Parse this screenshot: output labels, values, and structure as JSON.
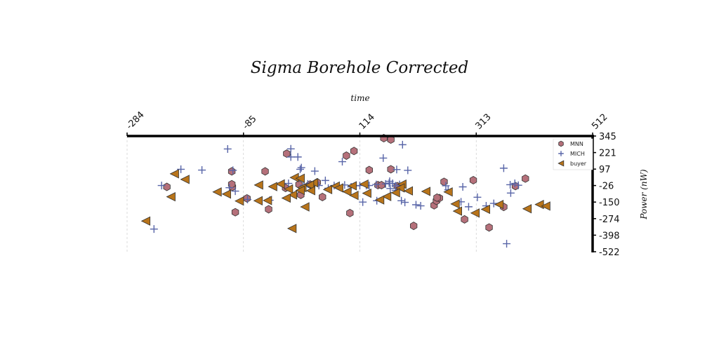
{
  "chart_data": {
    "type": "scatter",
    "title": "Sigma Borehole Corrected",
    "xlabel": "time",
    "ylabel": "Power (nW)",
    "xlim": [
      -284,
      512
    ],
    "ylim": [
      -522,
      345
    ],
    "x_ticks": [
      "-284",
      "-85",
      "114",
      "313",
      "512"
    ],
    "y_ticks": [
      "345",
      "221",
      "97",
      "-26",
      "-150",
      "-274",
      "-398",
      "-522"
    ],
    "x_axis_position": "top",
    "y_axis_position": "right",
    "grid": "vertical dashed",
    "legend_position": "top-right",
    "series": [
      {
        "name": "MNN",
        "marker": "hexagon",
        "color": "#b5707a",
        "points": [
          [
            -216,
            -36
          ],
          [
            -104,
            -36
          ],
          [
            -105,
            -16
          ],
          [
            -99,
            -226
          ],
          [
            -105,
            80
          ],
          [
            -42,
            -204
          ],
          [
            -48,
            80
          ],
          [
            -79,
            -122
          ],
          [
            -11,
            213
          ],
          [
            -13,
            -44
          ],
          [
            10,
            -18
          ],
          [
            13,
            -96
          ],
          [
            29,
            -18
          ],
          [
            41,
            -2
          ],
          [
            50,
            -112
          ],
          [
            91,
            198
          ],
          [
            104,
            233
          ],
          [
            97,
            -232
          ],
          [
            130,
            90
          ],
          [
            155,
            329
          ],
          [
            167,
            318
          ],
          [
            167,
            96
          ],
          [
            145,
            -23
          ],
          [
            151,
            -23
          ],
          [
            178,
            -30
          ],
          [
            206,
            -328
          ],
          [
            241,
            -174
          ],
          [
            245,
            -141
          ],
          [
            250,
            -120
          ],
          [
            246,
            -117
          ],
          [
            258,
            2
          ],
          [
            293,
            -280
          ],
          [
            308,
            14
          ],
          [
            360,
            -186
          ],
          [
            397,
            26
          ],
          [
            380,
            -30
          ],
          [
            335,
            -340
          ]
        ]
      },
      {
        "name": "MICH",
        "marker": "plus",
        "color": "#5865a8",
        "points": [
          [
            -238,
            -352
          ],
          [
            -225,
            -26
          ],
          [
            -192,
            96
          ],
          [
            -156,
            90
          ],
          [
            -112,
            248
          ],
          [
            -103,
            88
          ],
          [
            -109,
            -42
          ],
          [
            -99,
            -68
          ],
          [
            -78,
            -130
          ],
          [
            -40,
            -136
          ],
          [
            -8,
            -10
          ],
          [
            -4,
            249
          ],
          [
            -4,
            188
          ],
          [
            8,
            188
          ],
          [
            12,
            96
          ],
          [
            14,
            108
          ],
          [
            37,
            82
          ],
          [
            55,
            12
          ],
          [
            60,
            -46
          ],
          [
            70,
            -26
          ],
          [
            84,
            153
          ],
          [
            114,
            -26
          ],
          [
            119,
            -150
          ],
          [
            125,
            -26
          ],
          [
            130,
            -26
          ],
          [
            143,
            -140
          ],
          [
            154,
            180
          ],
          [
            165,
            6
          ],
          [
            166,
            -48
          ],
          [
            164,
            -8
          ],
          [
            170,
            -10
          ],
          [
            175,
            -62
          ],
          [
            185,
            -140
          ],
          [
            191,
            -152
          ],
          [
            210,
            -170
          ],
          [
            218,
            -178
          ],
          [
            261,
            -28
          ],
          [
            265,
            -58
          ],
          [
            287,
            -148
          ],
          [
            290,
            -36
          ],
          [
            330,
            -178
          ],
          [
            343,
            -160
          ],
          [
            365,
            -462
          ],
          [
            385,
            -24
          ],
          [
            379,
            -10
          ],
          [
            372,
            -82
          ],
          [
            315,
            -114
          ],
          [
            360,
            104
          ],
          [
            371,
            -20
          ],
          [
            300,
            -185
          ],
          [
            196,
            88
          ],
          [
            177,
            94
          ],
          [
            175,
            -28
          ],
          [
            182,
            -18
          ],
          [
            158,
            -14
          ],
          [
            142,
            -18
          ],
          [
            107,
            -28
          ],
          [
            99,
            -36
          ],
          [
            88,
            -22
          ],
          [
            44,
            -26
          ],
          [
            25,
            -14
          ],
          [
            18,
            -24
          ],
          [
            187,
            280
          ]
        ]
      },
      {
        "name": "buyer",
        "marker": "triangle-left",
        "color": "#b8741a",
        "points": [
          [
            -252,
            -292
          ],
          [
            -203,
            62
          ],
          [
            -209,
            -110
          ],
          [
            -185,
            20
          ],
          [
            -130,
            -74
          ],
          [
            -114,
            -90
          ],
          [
            -92,
            -142
          ],
          [
            -59,
            -22
          ],
          [
            -44,
            -138
          ],
          [
            -22,
            -14
          ],
          [
            -60,
            -140
          ],
          [
            -35,
            -34
          ],
          [
            15,
            -42
          ],
          [
            30,
            -18
          ],
          [
            20,
            -186
          ],
          [
            35,
            -5
          ],
          [
            59,
            -56
          ],
          [
            72,
            -30
          ],
          [
            12,
            -62
          ],
          [
            28,
            -22
          ],
          [
            78,
            -44
          ],
          [
            92,
            -72
          ],
          [
            104,
            -100
          ],
          [
            121,
            -16
          ],
          [
            186,
            -16
          ],
          [
            183,
            -44
          ],
          [
            175,
            -80
          ],
          [
            197,
            -66
          ],
          [
            227,
            -70
          ],
          [
            265,
            -74
          ],
          [
            281,
            -218
          ],
          [
            311,
            -232
          ],
          [
            329,
            -204
          ],
          [
            277,
            -164
          ],
          [
            352,
            -168
          ],
          [
            400,
            -200
          ],
          [
            421,
            -168
          ],
          [
            432,
            -180
          ],
          [
            -2,
            -348
          ],
          [
            -8,
            -52
          ],
          [
            2,
            34
          ],
          [
            12,
            28
          ],
          [
            101,
            -28
          ],
          [
            126,
            -84
          ],
          [
            160,
            -108
          ],
          [
            148,
            -134
          ],
          [
            30,
            -64
          ],
          [
            -1,
            -96
          ],
          [
            -12,
            -120
          ]
        ]
      }
    ]
  }
}
